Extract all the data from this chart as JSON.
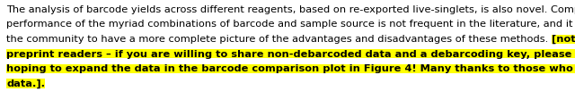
{
  "line_parts": [
    [
      [
        "The analysis of barcode yields across different reagents, based on re-exported live-singlets, is also novel. Comparing the",
        false
      ]
    ],
    [
      [
        "performance of the myriad combinations of barcode and sample source is not frequent in the literature, and it behooves",
        false
      ]
    ],
    [
      [
        "the community to have a more complete picture of the advantages and disadvantages of these methods. ",
        false
      ],
      [
        "[note to",
        true
      ]
    ],
    [
      [
        "preprint readers – if you are willing to share non-debarcoded data and a debarcoding key, please reach out! We are",
        true
      ]
    ],
    [
      [
        "hoping to expand the data in the barcode comparison plot in Figure 4! Many thanks to those who already provided",
        true
      ]
    ],
    [
      [
        "data.].",
        true
      ]
    ]
  ],
  "font_size": 8.2,
  "font_family": "DejaVu Sans",
  "text_color": "#000000",
  "highlight_color": "#FFFF00",
  "background_color": "#FFFFFF",
  "figwidth": 6.4,
  "figheight": 1.12,
  "dpi": 100
}
